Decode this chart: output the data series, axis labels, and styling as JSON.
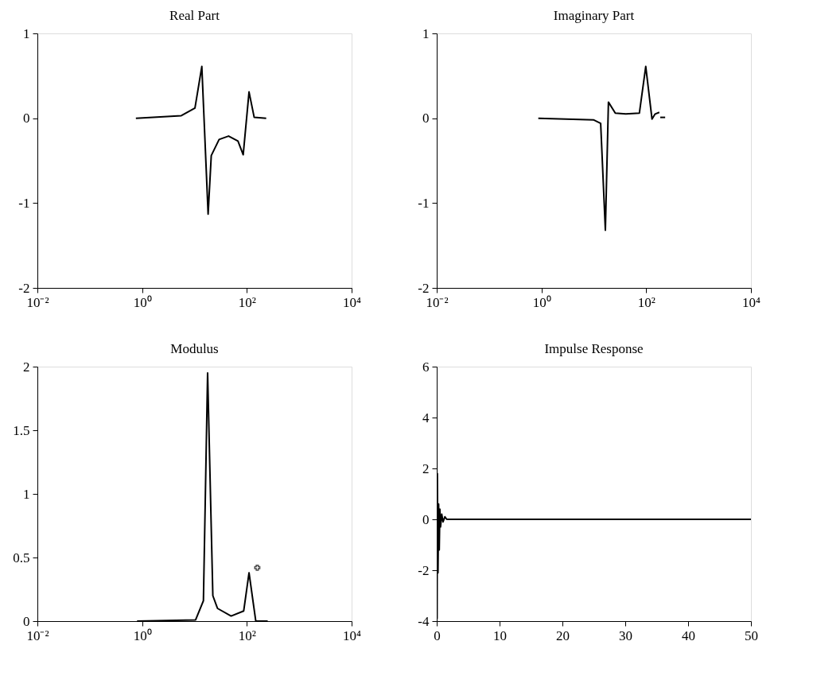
{
  "chart_data": [
    {
      "type": "line",
      "title": "Real Part",
      "log": "x",
      "grid": false,
      "marker": "none",
      "line_style": "solid",
      "xlim": [
        0.01,
        10000
      ],
      "xticks": [
        {
          "value": 0.01,
          "label": "10⁻²"
        },
        {
          "value": 1,
          "label": "10⁰"
        },
        {
          "value": 100,
          "label": "10²"
        },
        {
          "value": 10000,
          "label": "10⁴"
        }
      ],
      "ylim": [
        -2,
        1
      ],
      "yticks": [
        -2,
        -1,
        0,
        1
      ],
      "series": [
        {
          "color": "#000000",
          "x": [
            0.76,
            5.6,
            10.2,
            13.8,
            18.2,
            20.9,
            29.5,
            44.7,
            67.6,
            85.1,
            110,
            138,
            234
          ],
          "values": [
            0,
            0.03,
            0.12,
            0.61,
            -1.13,
            -0.44,
            -0.25,
            -0.21,
            -0.27,
            -0.43,
            0.31,
            0.01,
            0
          ]
        }
      ]
    },
    {
      "type": "line",
      "title": "Imaginary Part",
      "log": "x",
      "grid": false,
      "marker": "none",
      "line_style": "solid",
      "xlim": [
        0.01,
        10000
      ],
      "xticks": [
        {
          "value": 0.01,
          "label": "10⁻²"
        },
        {
          "value": 1,
          "label": "10⁰"
        },
        {
          "value": 100,
          "label": "10²"
        },
        {
          "value": 10000,
          "label": "10⁴"
        }
      ],
      "ylim": [
        -2,
        1
      ],
      "yticks": [
        -2,
        -1,
        0,
        1
      ],
      "series": [
        {
          "color": "#000000",
          "x": [
            0.87,
            10,
            13.5,
            16.6,
            19,
            25.7,
            40.7,
            74,
            98,
            129,
            148,
            178
          ],
          "values": [
            0,
            -0.02,
            -0.06,
            -1.32,
            0.19,
            0.06,
            0.05,
            0.06,
            0.61,
            -0.01,
            0.05,
            0.07
          ]
        },
        {
          "color": "#000000",
          "x": [
            185,
            230
          ],
          "values": [
            0.01,
            0.01
          ]
        }
      ]
    },
    {
      "type": "line",
      "title": "Modulus",
      "log": "x",
      "grid": false,
      "marker": "none",
      "line_style": "solid",
      "xlim": [
        0.01,
        10000
      ],
      "xticks": [
        {
          "value": 0.01,
          "label": "10⁻²"
        },
        {
          "value": 1,
          "label": "10⁰"
        },
        {
          "value": 100,
          "label": "10²"
        },
        {
          "value": 10000,
          "label": "10⁴"
        }
      ],
      "ylim": [
        0,
        2
      ],
      "yticks": [
        0,
        0.5,
        1,
        1.5,
        2
      ],
      "series": [
        {
          "color": "#000000",
          "x": [
            0.8,
            10.5,
            14.8,
            17.8,
            22.4,
            27.5,
            50,
            87,
            110,
            148,
            250
          ],
          "values": [
            0,
            0.01,
            0.16,
            1.95,
            0.2,
            0.1,
            0.04,
            0.08,
            0.38,
            0,
            0
          ]
        },
        {
          "type": "scatter",
          "marker": "cross",
          "color": "#000000",
          "x": [
            158
          ],
          "values": [
            0.42
          ]
        }
      ]
    },
    {
      "type": "line",
      "title": "Impulse Response",
      "grid": false,
      "marker": "none",
      "line_style": "solid",
      "xlim": [
        0,
        50
      ],
      "xticks": [
        0,
        10,
        20,
        30,
        40,
        50
      ],
      "ylim": [
        -4,
        6
      ],
      "yticks": [
        -4,
        -2,
        0,
        2,
        4,
        6
      ],
      "series": [
        {
          "color": "#000000",
          "x": [
            0,
            0.05,
            0.1,
            0.2,
            0.3,
            0.4,
            0.5,
            0.6,
            0.8,
            1.0,
            1.3,
            1.6,
            50
          ],
          "values": [
            4.4,
            -3.9,
            1.8,
            -2.1,
            0.6,
            -1.2,
            0.4,
            -0.3,
            0.2,
            -0.1,
            0.1,
            0,
            0
          ]
        }
      ]
    }
  ]
}
